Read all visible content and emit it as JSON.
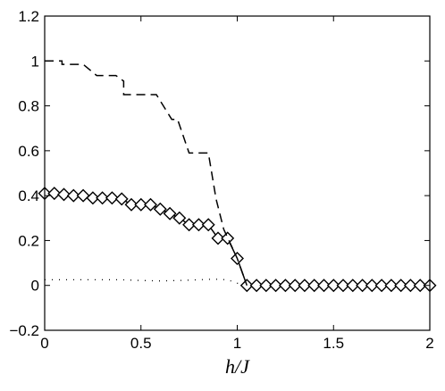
{
  "chart_data": {
    "type": "line",
    "title": "",
    "xlabel": "h/J",
    "ylabel": "",
    "xlim": [
      0,
      2
    ],
    "ylim": [
      -0.2,
      1.2
    ],
    "xticks": [
      0,
      0.5,
      1,
      1.5,
      2
    ],
    "xtick_labels": [
      "0",
      "0.5",
      "1",
      "1.5",
      "2"
    ],
    "yticks": [
      -0.2,
      0,
      0.2,
      0.4,
      0.6,
      0.8,
      1.0,
      1.2
    ],
    "ytick_labels": [
      "−0.2",
      "0",
      "0.2",
      "0.4",
      "0.6",
      "0.8",
      "1",
      "1.2"
    ],
    "grid": false,
    "series": [
      {
        "style": "solid-diamond",
        "color": "#000000",
        "x": [
          0,
          0.05,
          0.1,
          0.15,
          0.2,
          0.25,
          0.3,
          0.35,
          0.4,
          0.45,
          0.5,
          0.55,
          0.6,
          0.65,
          0.7,
          0.75,
          0.8,
          0.85,
          0.9,
          0.95,
          1.0,
          1.05,
          1.1,
          1.15,
          1.2,
          1.25,
          1.3,
          1.35,
          1.4,
          1.45,
          1.5,
          1.55,
          1.6,
          1.65,
          1.7,
          1.75,
          1.8,
          1.85,
          1.9,
          1.95,
          2.0
        ],
        "y": [
          0.41,
          0.41,
          0.405,
          0.4,
          0.4,
          0.39,
          0.39,
          0.39,
          0.385,
          0.36,
          0.36,
          0.36,
          0.34,
          0.32,
          0.3,
          0.27,
          0.27,
          0.27,
          0.21,
          0.21,
          0.12,
          0,
          0,
          0,
          0,
          0,
          0,
          0,
          0,
          0,
          0,
          0,
          0,
          0,
          0,
          0,
          0,
          0,
          0,
          0,
          0
        ]
      },
      {
        "style": "dashed",
        "color": "#000000",
        "x": [
          0,
          0.09,
          0.09,
          0.2,
          0.2,
          0.27,
          0.27,
          0.37,
          0.37,
          0.41,
          0.41,
          0.52,
          0.52,
          0.58,
          0.58,
          0.66,
          0.66,
          0.69,
          0.69,
          0.75,
          0.75,
          0.83,
          0.83,
          0.85,
          0.85,
          0.89,
          0.89,
          0.93,
          0.93,
          1.0,
          1.05
        ],
        "y": [
          1.0,
          1.0,
          0.985,
          0.985,
          0.985,
          0.935,
          0.935,
          0.935,
          0.935,
          0.91,
          0.85,
          0.85,
          0.85,
          0.85,
          0.85,
          0.74,
          0.74,
          0.74,
          0.74,
          0.59,
          0.59,
          0.59,
          0.59,
          0.59,
          0.59,
          0.385,
          0.385,
          0.25,
          0.25,
          0.12,
          0
        ]
      },
      {
        "style": "dotted",
        "color": "#000000",
        "x": [
          0,
          0.2,
          0.4,
          0.5,
          0.6,
          0.7,
          0.8,
          0.88,
          0.95,
          1.0,
          1.03
        ],
        "y": [
          0.025,
          0.025,
          0.025,
          0.022,
          0.02,
          0.022,
          0.025,
          0.028,
          0.025,
          0.01,
          0
        ]
      }
    ]
  }
}
